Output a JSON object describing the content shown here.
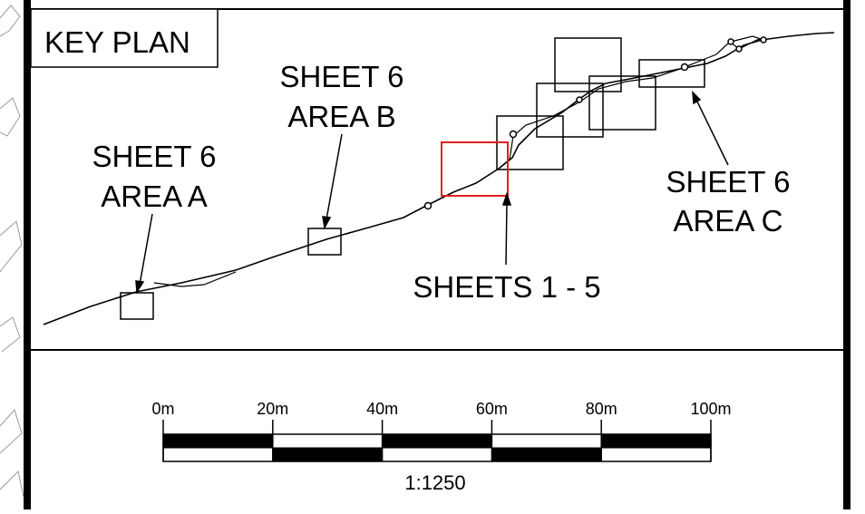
{
  "key_plan": {
    "title": "KEY PLAN",
    "labels": {
      "area_a_line1": "SHEET 6",
      "area_a_line2": "AREA A",
      "area_b_line1": "SHEET 6",
      "area_b_line2": "AREA B",
      "area_c_line1": "SHEET 6",
      "area_c_line2": "AREA C",
      "sheets": "SHEETS 1 - 5"
    },
    "highlight_color": "#e02020",
    "line_color": "#000000"
  },
  "scale_bar": {
    "ticks": [
      "0m",
      "20m",
      "40m",
      "60m",
      "80m",
      "100m"
    ],
    "ratio": "1:1250"
  }
}
